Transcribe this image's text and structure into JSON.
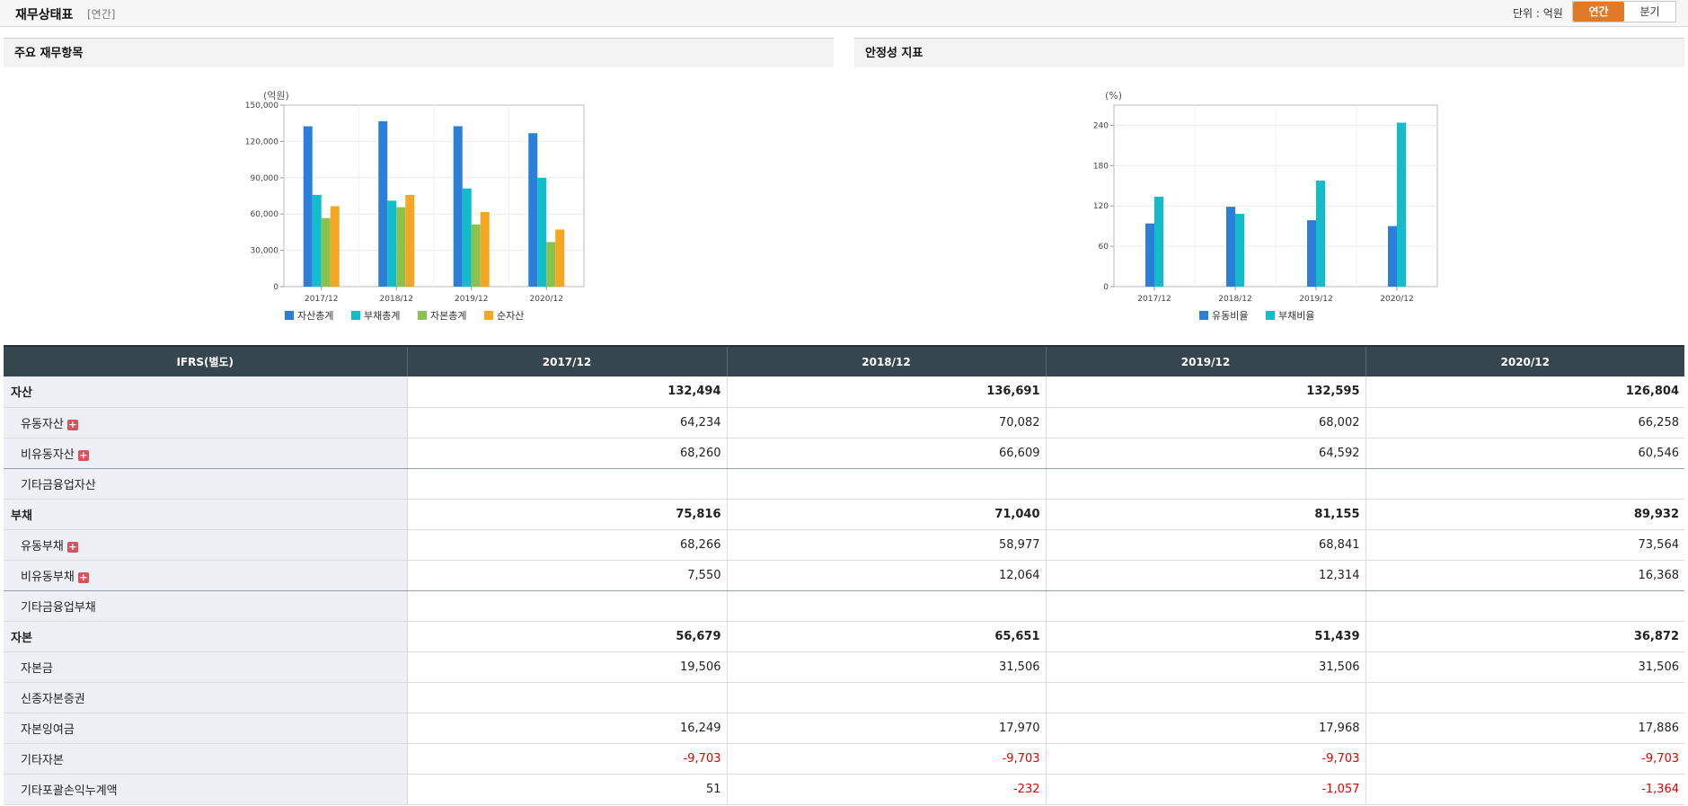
{
  "header": {
    "title": "재무상태표",
    "period_tag": "[연간]",
    "unit_label": "단위 : 억원",
    "toggle": [
      {
        "label": "연간",
        "active": true
      },
      {
        "label": "분기",
        "active": false
      }
    ]
  },
  "panels": [
    {
      "title": "주요 재무항목"
    },
    {
      "title": "안정성 지표"
    }
  ],
  "chart_data": [
    {
      "type": "bar",
      "unit_label": "(억원)",
      "categories": [
        "2017/12",
        "2018/12",
        "2019/12",
        "2020/12"
      ],
      "ylim": [
        0,
        150000
      ],
      "yticks": [
        0,
        30000,
        60000,
        90000,
        120000,
        150000
      ],
      "ytick_labels": [
        "0",
        "30,000",
        "60,000",
        "90,000",
        "120,000",
        "150,000"
      ],
      "grid": true,
      "legend_position": "bottom",
      "series": [
        {
          "name": "자산총계",
          "color": "#2c7fd8",
          "values": [
            132494,
            136691,
            132595,
            126804
          ]
        },
        {
          "name": "부채총계",
          "color": "#11bccb",
          "values": [
            75816,
            71040,
            81155,
            89932
          ]
        },
        {
          "name": "자본총계",
          "color": "#8bc34a",
          "values": [
            56679,
            65651,
            51439,
            36872
          ]
        },
        {
          "name": "순자산",
          "color": "#f5a623",
          "values": [
            66500,
            75800,
            61600,
            47200
          ]
        }
      ]
    },
    {
      "type": "bar",
      "unit_label": "(%)",
      "categories": [
        "2017/12",
        "2018/12",
        "2019/12",
        "2020/12"
      ],
      "ylim": [
        0,
        270
      ],
      "yticks": [
        0,
        60,
        120,
        180,
        240
      ],
      "ytick_labels": [
        "0",
        "60",
        "120",
        "180",
        "240"
      ],
      "grid": true,
      "legend_position": "bottom",
      "series": [
        {
          "name": "유동비율",
          "color": "#2c7fd8",
          "values": [
            94,
            118.8,
            98.8,
            90.1
          ]
        },
        {
          "name": "부채비율",
          "color": "#11bccb",
          "values": [
            133.8,
            108.2,
            157.8,
            243.9
          ]
        }
      ]
    }
  ],
  "table": {
    "columns": [
      "IFRS(별도)",
      "2017/12",
      "2018/12",
      "2019/12",
      "2020/12"
    ],
    "rows": [
      {
        "label": "자산",
        "kind": "head",
        "expand": false,
        "values": [
          "132,494",
          "136,691",
          "132,595",
          "126,804"
        ],
        "negatives": [
          false,
          false,
          false,
          false
        ]
      },
      {
        "label": "유동자산",
        "kind": "sub",
        "expand": true,
        "values": [
          "64,234",
          "70,082",
          "68,002",
          "66,258"
        ],
        "negatives": [
          false,
          false,
          false,
          false
        ]
      },
      {
        "label": "비유동자산",
        "kind": "sub",
        "expand": true,
        "sep": true,
        "values": [
          "68,260",
          "66,609",
          "64,592",
          "60,546"
        ],
        "negatives": [
          false,
          false,
          false,
          false
        ]
      },
      {
        "label": "기타금융업자산",
        "kind": "sub",
        "expand": false,
        "values": [
          "",
          "",
          "",
          ""
        ],
        "negatives": [
          false,
          false,
          false,
          false
        ]
      },
      {
        "label": "부채",
        "kind": "head",
        "expand": false,
        "values": [
          "75,816",
          "71,040",
          "81,155",
          "89,932"
        ],
        "negatives": [
          false,
          false,
          false,
          false
        ]
      },
      {
        "label": "유동부채",
        "kind": "sub",
        "expand": true,
        "values": [
          "68,266",
          "58,977",
          "68,841",
          "73,564"
        ],
        "negatives": [
          false,
          false,
          false,
          false
        ]
      },
      {
        "label": "비유동부채",
        "kind": "sub",
        "expand": true,
        "sep": true,
        "values": [
          "7,550",
          "12,064",
          "12,314",
          "16,368"
        ],
        "negatives": [
          false,
          false,
          false,
          false
        ]
      },
      {
        "label": "기타금융업부채",
        "kind": "sub",
        "expand": false,
        "values": [
          "",
          "",
          "",
          ""
        ],
        "negatives": [
          false,
          false,
          false,
          false
        ]
      },
      {
        "label": "자본",
        "kind": "head",
        "expand": false,
        "values": [
          "56,679",
          "65,651",
          "51,439",
          "36,872"
        ],
        "negatives": [
          false,
          false,
          false,
          false
        ]
      },
      {
        "label": "자본금",
        "kind": "sub",
        "expand": false,
        "values": [
          "19,506",
          "31,506",
          "31,506",
          "31,506"
        ],
        "negatives": [
          false,
          false,
          false,
          false
        ]
      },
      {
        "label": "신종자본증권",
        "kind": "sub",
        "expand": false,
        "values": [
          "",
          "",
          "",
          ""
        ],
        "negatives": [
          false,
          false,
          false,
          false
        ]
      },
      {
        "label": "자본잉여금",
        "kind": "sub",
        "expand": false,
        "values": [
          "16,249",
          "17,970",
          "17,968",
          "17,886"
        ],
        "negatives": [
          false,
          false,
          false,
          false
        ]
      },
      {
        "label": "기타자본",
        "kind": "sub",
        "expand": false,
        "values": [
          "-9,703",
          "-9,703",
          "-9,703",
          "-9,703"
        ],
        "negatives": [
          true,
          true,
          true,
          true
        ]
      },
      {
        "label": "기타포괄손익누계액",
        "kind": "sub",
        "expand": false,
        "values": [
          "51",
          "-232",
          "-1,057",
          "-1,364"
        ],
        "negatives": [
          false,
          true,
          true,
          true
        ]
      }
    ]
  }
}
